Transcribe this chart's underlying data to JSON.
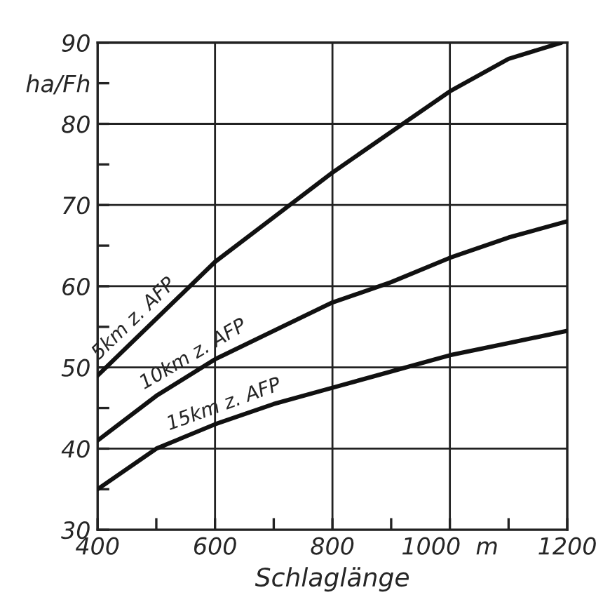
{
  "chart_data": {
    "type": "line",
    "xlabel": "Schlaglänge",
    "x": [
      400,
      500,
      600,
      700,
      800,
      900,
      1000,
      1100,
      1200
    ],
    "series": [
      {
        "color": "#111111",
        "x": [
          400,
          500,
          600,
          700,
          800,
          900,
          1000,
          1100,
          1190
        ],
        "values": [
          49,
          56,
          63,
          68.5,
          74,
          79,
          84,
          88,
          90
        ]
      },
      {
        "color": "#111111",
        "values": [
          41,
          46.5,
          51,
          54.5,
          58,
          60.5,
          63.5,
          66,
          68
        ]
      },
      {
        "color": "#111111",
        "values": [
          35,
          40,
          43,
          45.5,
          47.5,
          49.5,
          51.5,
          53,
          54.5
        ]
      }
    ],
    "annotations": [
      "5km z. AFP",
      "10km z. AFP",
      "15km z. AFP"
    ],
    "xlim": [
      400,
      1200
    ],
    "ylim": [
      30,
      90
    ],
    "xticks": [
      400,
      {
        "value": 500,
        "label": null
      },
      600,
      {
        "value": 700,
        "label": null
      },
      800,
      {
        "value": 900,
        "label": null
      },
      {
        "value": 1000,
        "label": "1000  m"
      },
      {
        "value": 1100,
        "label": null
      },
      1200
    ],
    "yticks": [
      30,
      {
        "value": 35,
        "label": null
      },
      40,
      {
        "value": 45,
        "label": null
      },
      50,
      {
        "value": 55,
        "label": null
      },
      60,
      {
        "value": 65,
        "label": null
      },
      70,
      {
        "value": 75,
        "label": null
      },
      80,
      {
        "value": 85,
        "label": "ha/Fh"
      },
      90
    ],
    "grid": true,
    "legend": false,
    "marker": "none",
    "line_style": "solid"
  }
}
